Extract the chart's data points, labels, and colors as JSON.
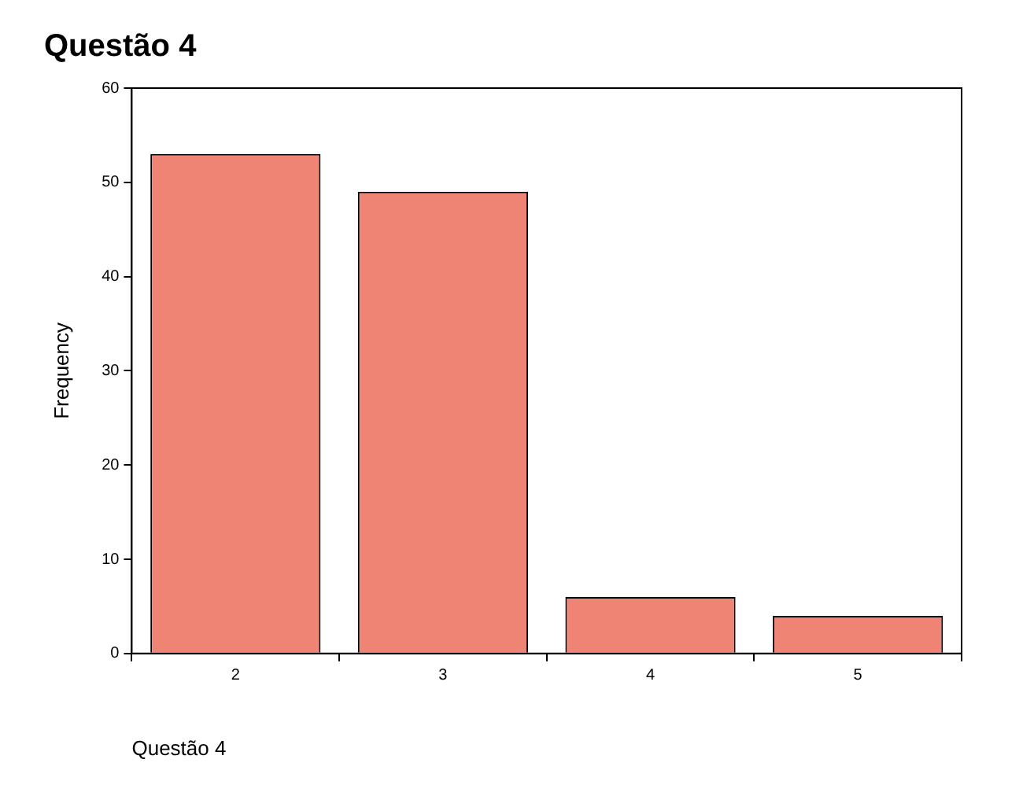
{
  "chart_data": {
    "type": "bar",
    "title": "Questão 4",
    "xlabel": "Questão 4",
    "ylabel": "Frequency",
    "categories": [
      "2",
      "3",
      "4",
      "5"
    ],
    "values": [
      53,
      49,
      6,
      4
    ],
    "color": "#f08474",
    "ylim": [
      0,
      60
    ],
    "yticks": [
      0,
      10,
      20,
      30,
      40,
      50,
      60
    ],
    "grid": false,
    "legend": false
  }
}
